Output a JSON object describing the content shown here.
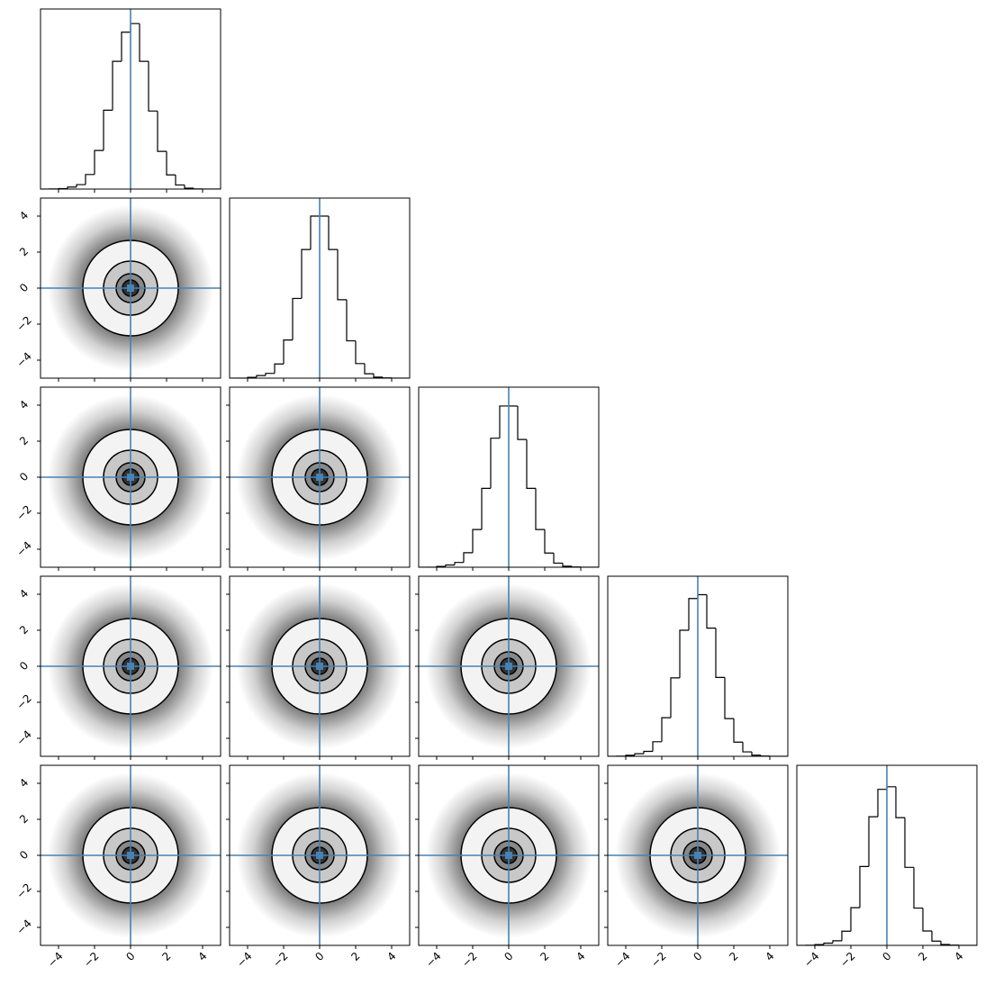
{
  "chart_data": {
    "type": "corner",
    "xlim": [
      -5,
      5
    ],
    "ylim": [
      -5,
      5
    ],
    "xticks": [
      {
        "value": -4,
        "label": "−4"
      },
      {
        "value": -2,
        "label": "−2"
      },
      0,
      2,
      4
    ],
    "yticks": [
      {
        "value": -4,
        "label": "−4"
      },
      {
        "value": -2,
        "label": "−2"
      },
      0,
      2,
      4
    ],
    "bins": [
      -5,
      -4.5,
      -4,
      -3.5,
      -3,
      -2.5,
      -2,
      -1.5,
      -1,
      -0.5,
      0,
      0.5,
      1,
      1.5,
      2,
      2.5,
      3,
      3.5,
      4,
      4.5,
      5
    ],
    "hist_ylim": [
      0,
      21000
    ],
    "hist_color": "#000000",
    "histograms": [
      {
        "values": [
          0,
          10,
          60,
          240,
          520,
          1700,
          4500,
          9200,
          14900,
          18300,
          19300,
          14900,
          9100,
          4400,
          1650,
          480,
          110,
          20,
          5,
          0
        ]
      },
      {
        "values": [
          0,
          5,
          100,
          300,
          560,
          1650,
          4450,
          9300,
          15000,
          18900,
          18900,
          15000,
          9150,
          4350,
          1700,
          510,
          120,
          30,
          5,
          0
        ]
      },
      {
        "values": [
          0,
          5,
          100,
          260,
          560,
          1690,
          4400,
          9200,
          15050,
          18800,
          18800,
          14900,
          9200,
          4400,
          1650,
          480,
          120,
          25,
          5,
          0
        ]
      },
      {
        "values": [
          0,
          10,
          120,
          300,
          580,
          1700,
          4500,
          9150,
          14700,
          18400,
          18850,
          14950,
          9200,
          4400,
          1650,
          520,
          130,
          30,
          5,
          0
        ]
      },
      {
        "values": [
          0,
          10,
          100,
          260,
          540,
          1650,
          4400,
          9200,
          15000,
          18200,
          18500,
          14900,
          9100,
          4350,
          1680,
          500,
          110,
          25,
          5,
          0
        ]
      }
    ],
    "truths": [
      0,
      0,
      0,
      0,
      0
    ],
    "truth_color": "#4682b4",
    "contour_radii": [
      0.45,
      0.8,
      1.5,
      2.65
    ]
  }
}
